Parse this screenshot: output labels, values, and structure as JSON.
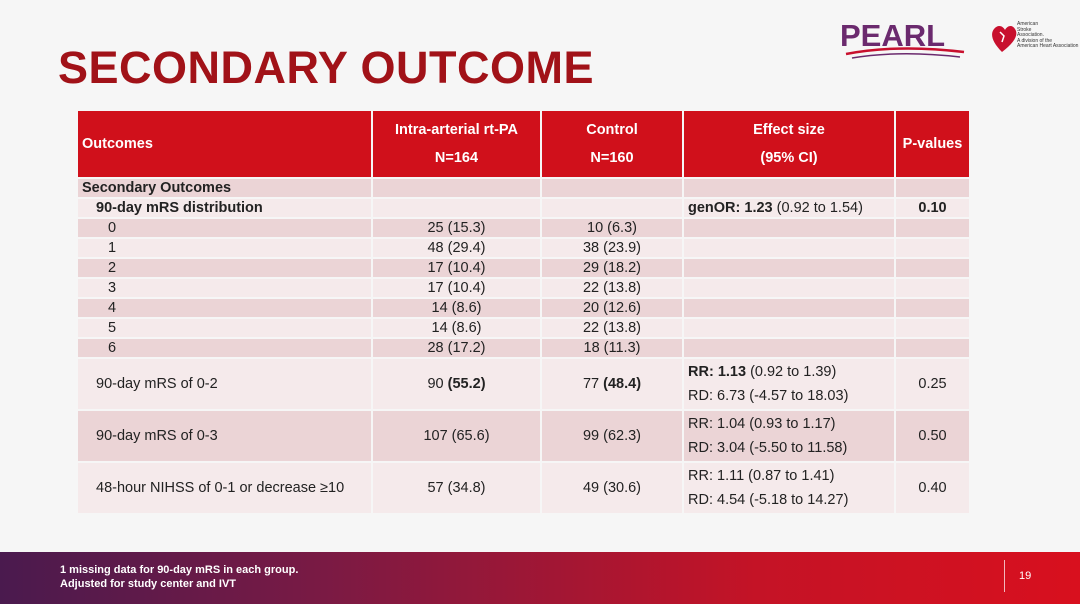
{
  "title": "SECONDARY OUTCOME",
  "logos": {
    "pearl": "PEARL",
    "aha_lines": [
      "American",
      "Stroke",
      "Association.",
      "A division of the",
      "American Heart Association"
    ]
  },
  "table": {
    "headers": {
      "outcomes": "Outcomes",
      "ia_line1": "Intra-arterial rt-PA",
      "ia_line2": "N=164",
      "ctrl_line1": "Control",
      "ctrl_line2": "N=160",
      "es_line1": "Effect size",
      "es_line2": "(95% CI)",
      "p": "P-values"
    },
    "section_label": "Secondary Outcomes",
    "mrs_dist": {
      "label": "90-day mRS distribution",
      "effect_prefix": "genOR: ",
      "effect_value": "1.23",
      "effect_ci": " (0.92 to 1.54)",
      "p": "0.10"
    },
    "mrs_rows": [
      {
        "score": "0",
        "ia": "25 (15.3)",
        "ctrl": "10 (6.3)"
      },
      {
        "score": "1",
        "ia": "48 (29.4)",
        "ctrl": "38 (23.9)"
      },
      {
        "score": "2",
        "ia": "17 (10.4)",
        "ctrl": "29 (18.2)"
      },
      {
        "score": "3",
        "ia": "17 (10.4)",
        "ctrl": "22 (13.8)"
      },
      {
        "score": "4",
        "ia": "14 (8.6)",
        "ctrl": "20 (12.6)"
      },
      {
        "score": "5",
        "ia": "14 (8.6)",
        "ctrl": "22 (13.8)"
      },
      {
        "score": "6",
        "ia": "28 (17.2)",
        "ctrl": "18 (11.3)"
      }
    ],
    "mrs02": {
      "label": "90-day mRS of 0-2",
      "ia_n": "90 ",
      "ia_pct": "(55.2)",
      "ctrl_n": "77 ",
      "ctrl_pct": "(48.4)",
      "rr_prefix": "RR: ",
      "rr_value": "1.13",
      "rr_ci": " (0.92 to 1.39)",
      "rd": "RD: 6.73 (-4.57 to 18.03)",
      "p": "0.25"
    },
    "mrs03": {
      "label": "90-day mRS of 0-3",
      "ia": "107 (65.6)",
      "ctrl": "99 (62.3)",
      "rr": "RR: 1.04 (0.93 to 1.17)",
      "rd": "RD: 3.04 (-5.50 to 11.58)",
      "p": "0.50"
    },
    "nihss": {
      "label": "48-hour NIHSS of 0-1 or decrease ≥10",
      "ia": "57 (34.8)",
      "ctrl": "49 (30.6)",
      "rr": "RR: 1.11 (0.87 to 1.41)",
      "rd": "RD: 4.54 (-5.18 to 14.27)",
      "p": "0.40"
    }
  },
  "footer": {
    "note1": "1 missing data for 90-day mRS in each group.",
    "note2": "Adjusted for study center and IVT",
    "page": "19"
  }
}
